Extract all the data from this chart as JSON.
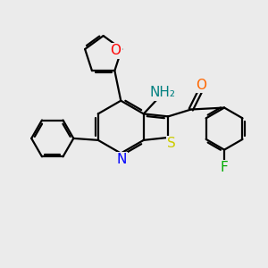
{
  "background_color": "#ebebeb",
  "bond_color": "#000000",
  "atom_colors": {
    "N": "#0000ff",
    "O": "#ff0000",
    "S": "#cccc00",
    "F": "#00aa00",
    "NH2": "#008080",
    "C_ketone_O": "#ff6600"
  },
  "lw": 1.6,
  "font_size": 10,
  "figsize": [
    3.0,
    3.0
  ],
  "dpi": 100
}
